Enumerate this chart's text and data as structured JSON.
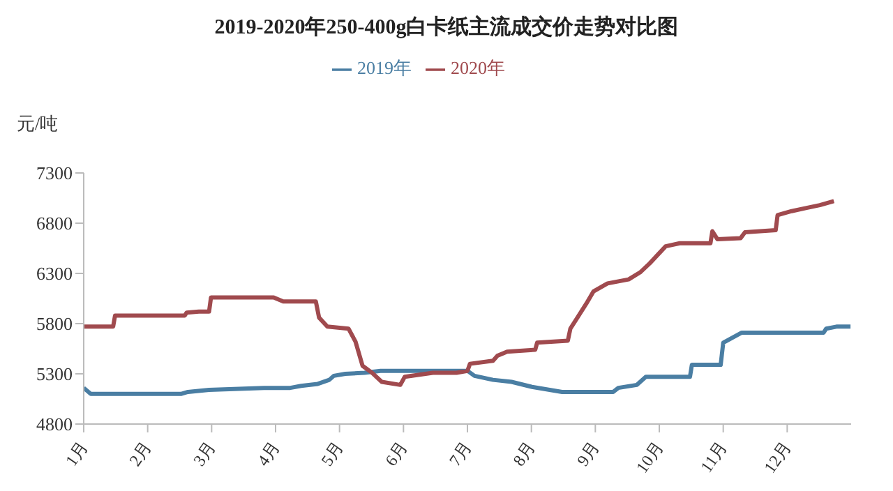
{
  "chart_data": {
    "type": "line",
    "title": "2019-2020年250-400g白卡纸主流成交价走势对比图",
    "ylabel": "元/吨",
    "xlim": [
      1,
      13
    ],
    "xticks": [
      {
        "value": 1,
        "label": "1月"
      },
      {
        "value": 2,
        "label": "2月"
      },
      {
        "value": 3,
        "label": "3月"
      },
      {
        "value": 4,
        "label": "4月"
      },
      {
        "value": 5,
        "label": "5月"
      },
      {
        "value": 6,
        "label": "6月"
      },
      {
        "value": 7,
        "label": "7月"
      },
      {
        "value": 8,
        "label": "8月"
      },
      {
        "value": 9,
        "label": "9月"
      },
      {
        "value": 10,
        "label": "10月"
      },
      {
        "value": 11,
        "label": "11月"
      },
      {
        "value": 12,
        "label": "12月"
      }
    ],
    "ylim": [
      4800,
      7300
    ],
    "yticks": [
      4800,
      5300,
      5800,
      6300,
      6800,
      7300
    ],
    "grid": false,
    "legend": "top",
    "marker": "none",
    "line_style": "solid",
    "series": [
      {
        "name": "2019年",
        "color": "#4a7ea3",
        "x": [
          1.0,
          1.11,
          2.52,
          2.63,
          2.96,
          3.82,
          4.23,
          4.4,
          4.66,
          4.84,
          4.91,
          5.09,
          5.39,
          5.64,
          7.0,
          7.11,
          7.4,
          7.69,
          8.01,
          8.48,
          9.28,
          9.36,
          9.65,
          9.79,
          10.48,
          10.51,
          10.96,
          11.0,
          11.29,
          12.57,
          12.61,
          12.77,
          12.99
        ],
        "values": [
          5160,
          5100,
          5100,
          5120,
          5140,
          5160,
          5160,
          5180,
          5200,
          5240,
          5280,
          5300,
          5310,
          5330,
          5330,
          5280,
          5240,
          5220,
          5170,
          5120,
          5120,
          5160,
          5190,
          5270,
          5270,
          5390,
          5390,
          5610,
          5710,
          5710,
          5750,
          5770,
          5770
        ]
      },
      {
        "name": "2020年",
        "color": "#a04a4e",
        "x": [
          1.0,
          1.46,
          1.49,
          2.58,
          2.61,
          2.8,
          2.96,
          2.99,
          3.97,
          4.12,
          4.63,
          4.68,
          4.81,
          5.14,
          5.25,
          5.36,
          5.51,
          5.66,
          5.95,
          6.02,
          6.46,
          6.83,
          7.0,
          7.04,
          7.4,
          7.47,
          7.62,
          8.06,
          8.09,
          8.57,
          8.61,
          8.72,
          8.86,
          8.97,
          9.19,
          9.52,
          9.7,
          9.85,
          10.1,
          10.32,
          10.8,
          10.83,
          10.91,
          11.27,
          11.34,
          11.82,
          11.85,
          12.07,
          12.29,
          12.51,
          12.73
        ],
        "values": [
          5770,
          5770,
          5880,
          5880,
          5910,
          5920,
          5920,
          6060,
          6060,
          6020,
          6020,
          5860,
          5770,
          5750,
          5620,
          5380,
          5310,
          5220,
          5190,
          5270,
          5310,
          5310,
          5330,
          5400,
          5430,
          5480,
          5520,
          5540,
          5610,
          5630,
          5750,
          5860,
          6000,
          6120,
          6200,
          6240,
          6310,
          6400,
          6570,
          6600,
          6600,
          6720,
          6640,
          6650,
          6710,
          6730,
          6880,
          6920,
          6950,
          6980,
          7020
        ]
      }
    ]
  }
}
